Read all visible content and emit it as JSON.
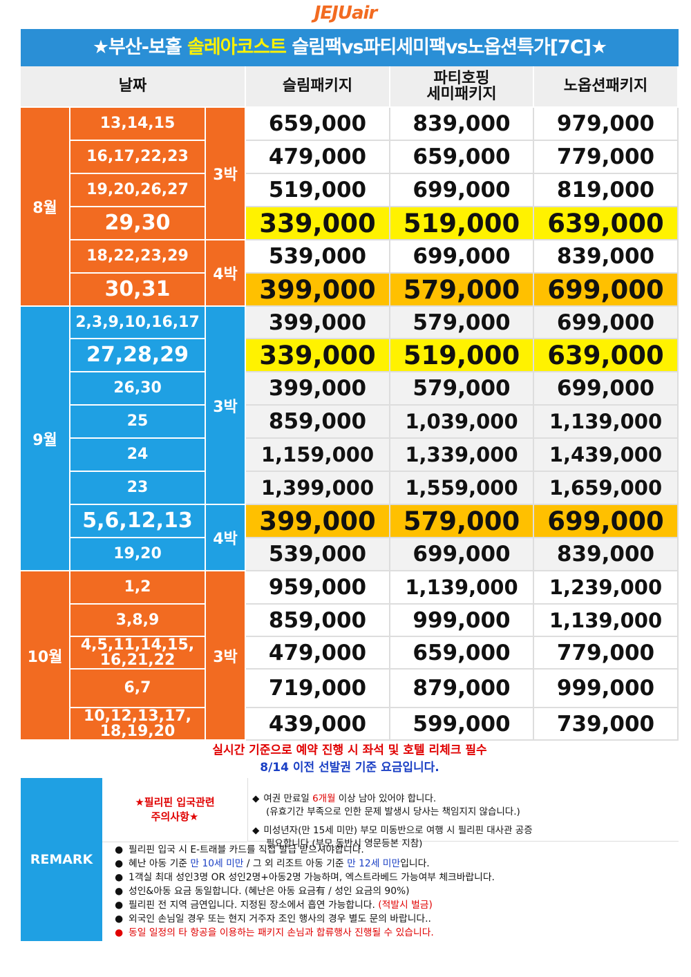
{
  "logo": "JEJUair",
  "title": {
    "part1": "★부산-보홀 ",
    "highlight": "솔레아코스트",
    "part2": " 슬림팩vs파티세미팩vs노옵션특가[7C]★"
  },
  "headers": {
    "date": "날짜",
    "slim": "슬림패키지",
    "party": "파티호핑\n세미패키지",
    "noop": "노옵션패키지"
  },
  "months": {
    "aug": "8월",
    "sep": "9월",
    "oct": "10월"
  },
  "nights": {
    "n3": "3박",
    "n4": "4박"
  },
  "rows": [
    {
      "date": "13,14,15",
      "slim": "659,000",
      "party": "839,000",
      "noop": "979,000"
    },
    {
      "date": "16,17,22,23",
      "slim": "479,000",
      "party": "659,000",
      "noop": "779,000"
    },
    {
      "date": "19,20,26,27",
      "slim": "519,000",
      "party": "699,000",
      "noop": "819,000"
    },
    {
      "date": "29,30",
      "slim": "339,000",
      "party": "519,000",
      "noop": "639,000"
    },
    {
      "date": "18,22,23,29",
      "slim": "539,000",
      "party": "699,000",
      "noop": "839,000"
    },
    {
      "date": "30,31",
      "slim": "399,000",
      "party": "579,000",
      "noop": "699,000"
    },
    {
      "date": "2,3,9,10,16,17",
      "slim": "399,000",
      "party": "579,000",
      "noop": "699,000"
    },
    {
      "date": "27,28,29",
      "slim": "339,000",
      "party": "519,000",
      "noop": "639,000"
    },
    {
      "date": "26,30",
      "slim": "399,000",
      "party": "579,000",
      "noop": "699,000"
    },
    {
      "date": "25",
      "slim": "859,000",
      "party": "1,039,000",
      "noop": "1,139,000"
    },
    {
      "date": "24",
      "slim": "1,159,000",
      "party": "1,339,000",
      "noop": "1,439,000"
    },
    {
      "date": "23",
      "slim": "1,399,000",
      "party": "1,559,000",
      "noop": "1,659,000"
    },
    {
      "date": "5,6,12,13",
      "slim": "399,000",
      "party": "579,000",
      "noop": "699,000"
    },
    {
      "date": "19,20",
      "slim": "539,000",
      "party": "699,000",
      "noop": "839,000"
    },
    {
      "date": "1,2",
      "slim": "959,000",
      "party": "1,139,000",
      "noop": "1,239,000"
    },
    {
      "date": "3,8,9",
      "slim": "859,000",
      "party": "999,000",
      "noop": "1,139,000"
    },
    {
      "date": "4,5,11,14,15,\n16,21,22",
      "slim": "479,000",
      "party": "659,000",
      "noop": "779,000"
    },
    {
      "date": "6,7",
      "slim": "719,000",
      "party": "879,000",
      "noop": "999,000"
    },
    {
      "date": "10,12,13,17,\n18,19,20",
      "slim": "439,000",
      "party": "599,000",
      "noop": "739,000"
    }
  ],
  "notice": {
    "line1": "실시간 기준으로 예약 진행 시 좌석 및 호텔 리체크 필수",
    "line2": "8/14 이전 선발권 기준 요금입니다."
  },
  "remark": {
    "label": "REMARK",
    "philippines_label": "★필리핀 입국관련\n주의사항★",
    "ph_note1_a": "여권 만료일 ",
    "ph_note1_red": "6개월",
    "ph_note1_b": " 이상 남아 있어야 합니다.",
    "ph_note1_line2": "(유효기간 부족으로 인한 문제 발생시 당사는 책임지지 않습니다.)",
    "ph_note2_line1": "미성년자(만 15세 미만) 부모 미동반으로 여행 시 필리핀 대사관 공증",
    "ph_note2_line2": "필요합니다.(부모 동반시 영문등본 지참)",
    "diamond": "◆",
    "bullet": "●",
    "item1": "필리핀 입국 시 E-트래블 카드를 직접 발급 받으셔야합니다.",
    "item2_a": "혜난 아동 기준 ",
    "item2_b": "만 10세 미만",
    "item2_c": " / 그 외 리조트 아동 기준 ",
    "item2_d": "만 12세 미만",
    "item2_e": "입니다.",
    "item3": "1객실 최대 성인3명 OR 성인2명+아동2명 가능하며, 엑스트라베드 가능여부 체크바랍니다.",
    "item4": "성인&아동 요금 동일합니다. (혜난은 아동 요금有 / 성인 요금의 90%)",
    "item5_a": "필리핀 전 지역 금연입니다. 지정된 장소에서 흡연 가능합니다. ",
    "item5_b": "(적발시 벌금)",
    "item6": "외국인 손님일 경우 또는 현지 거주자 조인 행사의 경우 별도 문의 바랍니다..",
    "item7": "동일 일정의 타 항공을 이용하는 패키지 손님과 합류행사 진행될 수 있습니다."
  },
  "colors": {
    "orange": "#f26b21",
    "blue": "#1fa0e3",
    "title_bg": "#2a8fd6",
    "yellow_highlight": "#fff200",
    "gold_highlight": "#ffc000"
  }
}
